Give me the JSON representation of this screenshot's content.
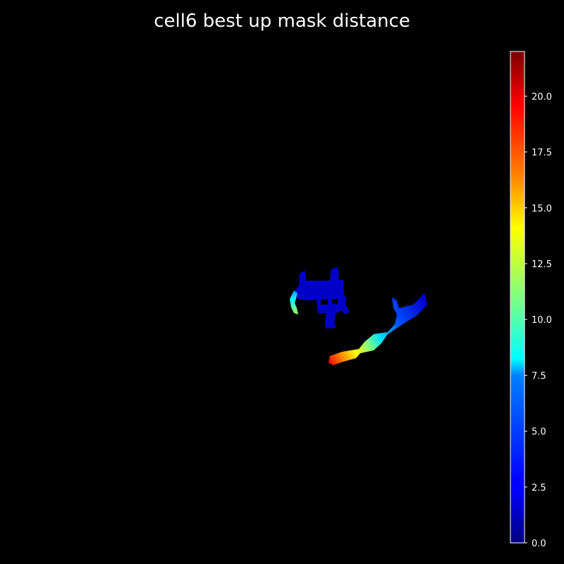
{
  "chart_data": {
    "type": "heatmap",
    "title": "cell6 best up mask distance",
    "colormap": "jet",
    "axes_visible": false,
    "background_color": "#000000",
    "colorbar": {
      "placement": "right",
      "vmin": 0.0,
      "vmax": 22.0,
      "ticks": [
        0.0,
        2.5,
        5.0,
        7.5,
        10.0,
        12.5,
        15.0,
        17.5,
        20.0
      ],
      "tick_labels": [
        "0.0",
        "2.5",
        "5.0",
        "7.5",
        "10.0",
        "12.5",
        "15.0",
        "17.5",
        "20.0"
      ]
    }
  }
}
